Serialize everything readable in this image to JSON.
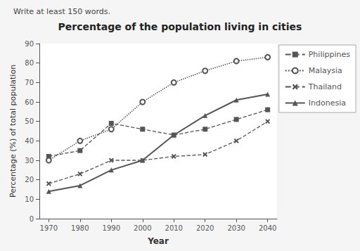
{
  "chart_data": {
    "type": "line",
    "title": "Percentage of the population living in cities",
    "subtitle": "Write at least 150 words.",
    "x_label": "Year",
    "y_label": "Percentage (%) of total population",
    "x": [
      1970,
      1980,
      1990,
      2000,
      2010,
      2020,
      2030,
      2040
    ],
    "series": [
      {
        "name": "Philippines",
        "color": "#555555",
        "marker": "square",
        "line_style": "dashed",
        "values": [
          32,
          35,
          49,
          46,
          43,
          46,
          51,
          56
        ]
      },
      {
        "name": "Malaysia",
        "color": "#555555",
        "marker": "circle",
        "line_style": "dotted",
        "values": [
          30,
          40,
          46,
          60,
          70,
          76,
          81,
          83
        ]
      },
      {
        "name": "Thailand",
        "color": "#555555",
        "marker": "x",
        "line_style": "dashed",
        "values": [
          18,
          23,
          30,
          30,
          32,
          33,
          40,
          50
        ]
      },
      {
        "name": "Indonesia",
        "color": "#555555",
        "marker": "triangle",
        "line_style": "solid",
        "values": [
          14,
          17,
          25,
          30,
          43,
          53,
          61,
          64
        ]
      }
    ],
    "xlim": [
      1967,
      2043
    ],
    "xticks": [
      1970,
      1980,
      1990,
      2000,
      2010,
      2020,
      2030,
      2040
    ],
    "ylim": [
      0,
      90
    ],
    "yticks": [
      0,
      10,
      20,
      30,
      40,
      50,
      60,
      70,
      80,
      90
    ],
    "grid": false,
    "legend": "right"
  }
}
